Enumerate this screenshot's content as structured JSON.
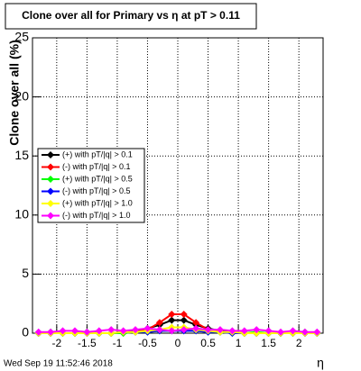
{
  "chart_data": {
    "type": "line",
    "title": "Clone  over all for Primary vs   η at pT > 0.11",
    "y_label": "Clone  over all (%)",
    "x_label": "η",
    "timestamp": "Wed Sep 19 11:52:46 2018",
    "x": [
      -2.3,
      -2.1,
      -1.9,
      -1.7,
      -1.5,
      -1.3,
      -1.1,
      -0.9,
      -0.7,
      -0.5,
      -0.3,
      -0.1,
      0.1,
      0.3,
      0.5,
      0.7,
      0.9,
      1.1,
      1.3,
      1.5,
      1.7,
      1.9,
      2.1,
      2.3
    ],
    "series": [
      {
        "name": "(+) with pT/|q| > 0.1",
        "color": "#000000",
        "values": [
          0,
          0,
          0,
          0,
          0,
          0,
          0,
          0.1,
          0.2,
          0.4,
          0.7,
          1.1,
          1.1,
          0.7,
          0.4,
          0.2,
          0.1,
          0,
          0,
          0,
          0,
          0,
          0,
          0
        ]
      },
      {
        "name": "(-) with pT/|q| > 0.1",
        "color": "#ff0000",
        "values": [
          0,
          0,
          0,
          0,
          0,
          0,
          0,
          0,
          0.1,
          0.3,
          0.9,
          1.6,
          1.6,
          0.9,
          0.3,
          0.1,
          0,
          0,
          0,
          0,
          0,
          0,
          0,
          0
        ]
      },
      {
        "name": "(+) with pT/|q| > 0.5",
        "color": "#00ff00",
        "values": [
          0,
          0.1,
          0,
          0,
          0.1,
          0,
          0,
          0,
          0.1,
          0.1,
          0.2,
          0.2,
          0.2,
          0.2,
          0.1,
          0.1,
          0,
          0,
          0.1,
          0,
          0,
          0,
          0.1,
          0
        ]
      },
      {
        "name": "(-) with pT/|q| > 0.5",
        "color": "#0000ff",
        "values": [
          0,
          0,
          0,
          0,
          0,
          0,
          0,
          0.1,
          0.1,
          0.1,
          0.2,
          0.2,
          0.2,
          0.2,
          0.1,
          0.1,
          0,
          0,
          0,
          0,
          0,
          0,
          0,
          0
        ]
      },
      {
        "name": "(+) with pT/|q| > 1.0",
        "color": "#ffff00",
        "values": [
          0,
          0,
          0,
          0,
          0,
          0,
          0,
          0.1,
          0.1,
          0.2,
          0.3,
          0.5,
          0.5,
          0.3,
          0.2,
          0.1,
          0.1,
          0,
          0,
          0,
          0,
          0,
          0,
          0
        ]
      },
      {
        "name": "(-) with pT/|q| > 1.0",
        "color": "#ff00ff",
        "values": [
          0.1,
          0.1,
          0.2,
          0.2,
          0.1,
          0.2,
          0.3,
          0.2,
          0.3,
          0.4,
          0.3,
          0.2,
          0.3,
          0.4,
          0.3,
          0.3,
          0.2,
          0.2,
          0.3,
          0.2,
          0.1,
          0.2,
          0.1,
          0.1
        ]
      }
    ],
    "xlim": [
      -2.4,
      2.4
    ],
    "ylim": [
      0,
      25
    ],
    "xticks": [
      -2,
      -1.5,
      -1,
      -0.5,
      0,
      0.5,
      1,
      1.5,
      2
    ],
    "yticks": [
      0,
      5,
      10,
      15,
      20,
      25
    ],
    "grid": true
  }
}
